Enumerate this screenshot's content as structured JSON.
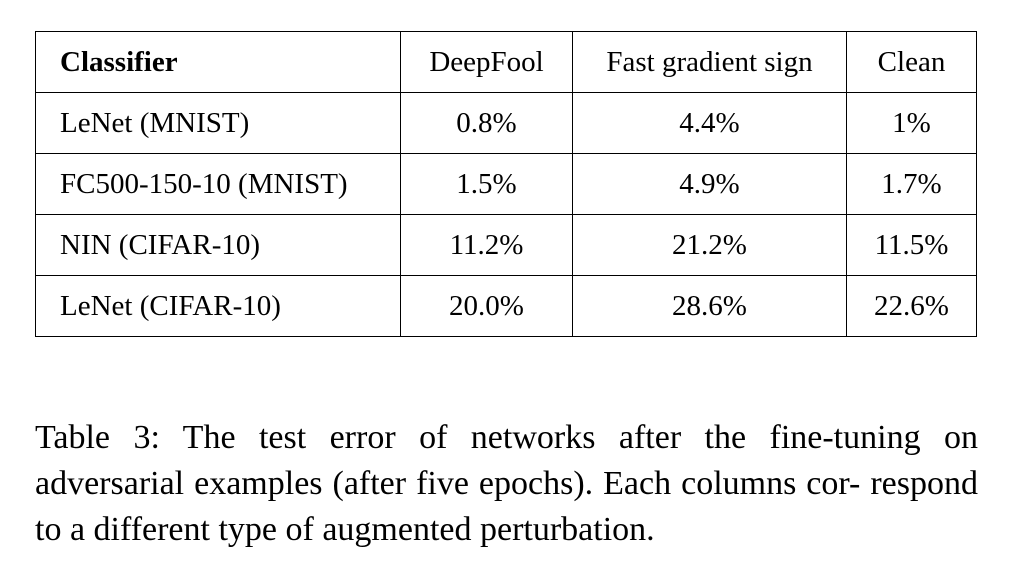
{
  "table": {
    "headers": [
      "Classifier",
      "DeepFool",
      "Fast gradient sign",
      "Clean"
    ],
    "rows": [
      [
        "LeNet (MNIST)",
        "0.8%",
        "4.4%",
        "1%"
      ],
      [
        "FC500-150-10 (MNIST)",
        "1.5%",
        "4.9%",
        "1.7%"
      ],
      [
        "NIN (CIFAR-10)",
        "11.2%",
        "21.2%",
        "11.5%"
      ],
      [
        "LeNet (CIFAR-10)",
        "20.0%",
        "28.6%",
        "22.6%"
      ]
    ]
  },
  "caption": {
    "line1": "Table 3: The test error of networks after the fine-tuning on",
    "line2": "adversarial examples (after five epochs). Each columns cor-",
    "line3": "respond to a different type of augmented perturbation."
  }
}
